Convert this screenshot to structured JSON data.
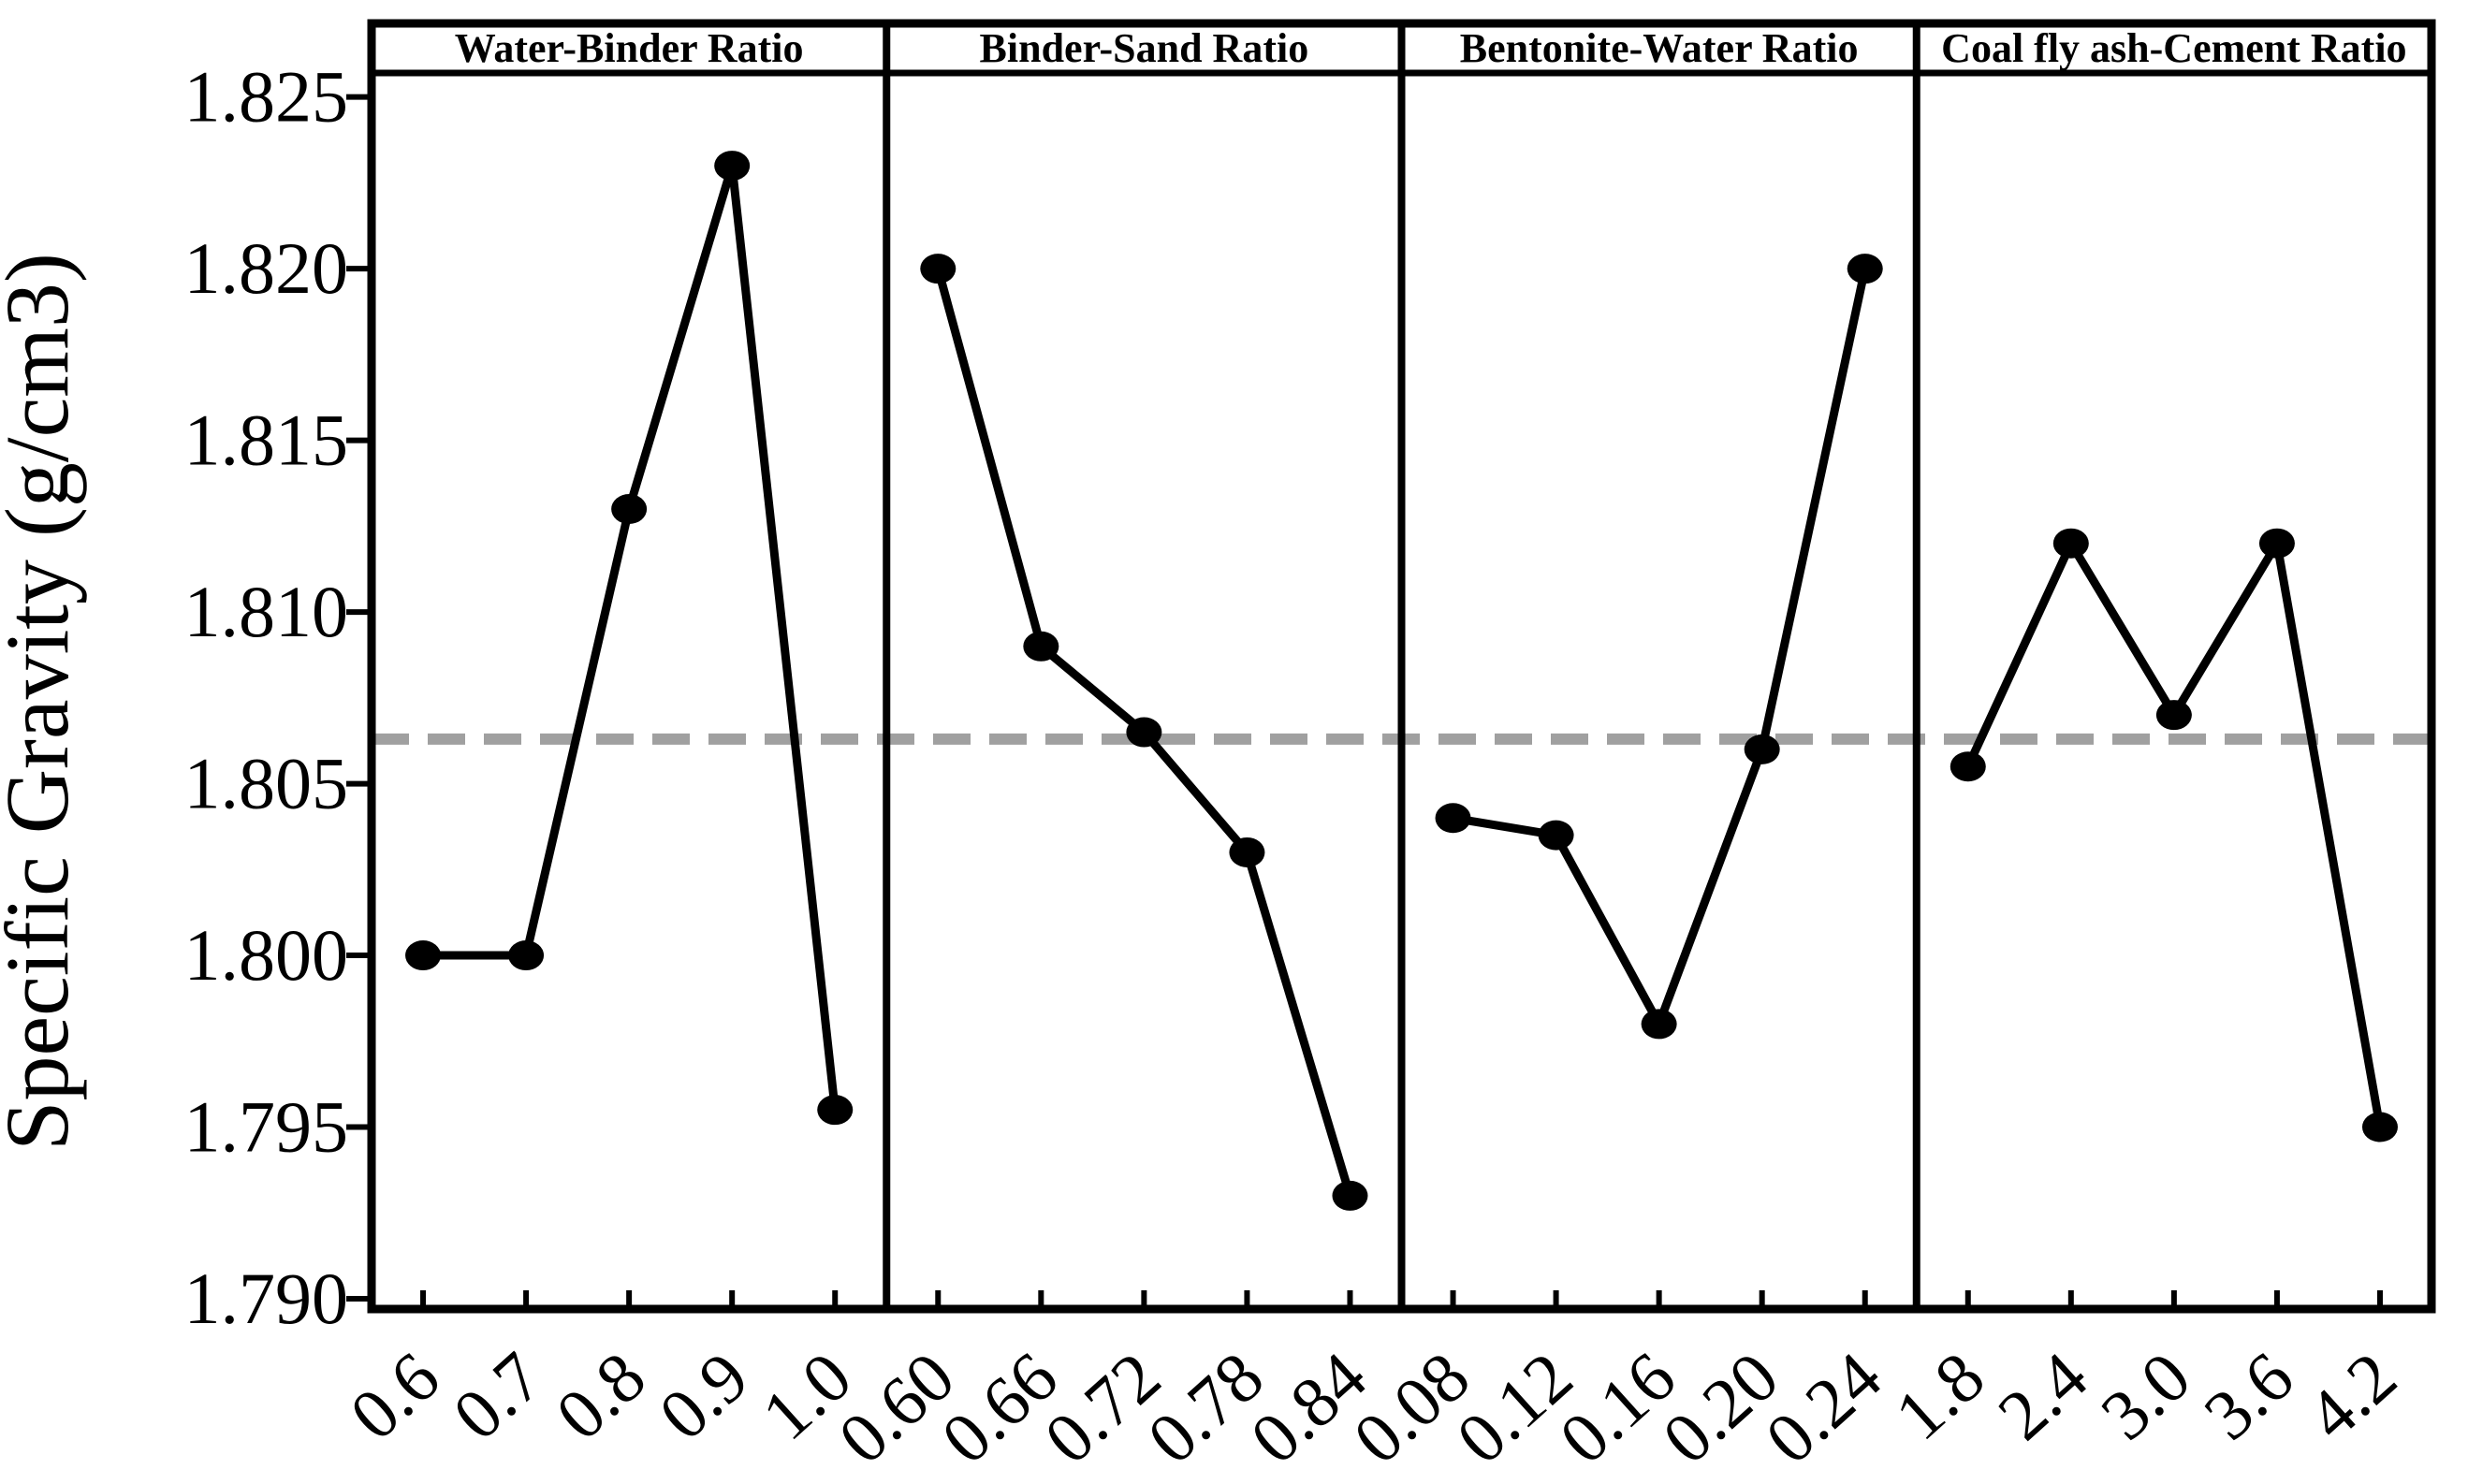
{
  "figure": {
    "background": "#ffffff",
    "frame_color": "#000000"
  },
  "chart_data": {
    "type": "line",
    "title": "",
    "ylabel": "Specific Gravity (g/cm3)",
    "xlabel": "",
    "ylim": [
      1.7897,
      1.8257
    ],
    "grid": false,
    "legend": false,
    "marker": "filled-circle",
    "series_color": "#000000",
    "y_ticks": [
      "1.790",
      "1.795",
      "1.800",
      "1.805",
      "1.810",
      "1.815",
      "1.820",
      "1.825"
    ],
    "mean_line": {
      "value": 1.8063,
      "color": "#a0a0a0",
      "style": "dashed"
    },
    "panels": [
      {
        "label": "Water-Binder Ratio",
        "categories": [
          "0.6",
          "0.7",
          "0.8",
          "0.9",
          "1.0"
        ],
        "values": [
          1.8,
          1.8,
          1.813,
          1.823,
          1.7955
        ]
      },
      {
        "label": "Binder-Sand Ratio",
        "categories": [
          "0.60",
          "0.66",
          "0.72",
          "0.78",
          "0.84"
        ],
        "values": [
          1.82,
          1.809,
          1.8065,
          1.803,
          1.793
        ]
      },
      {
        "label": "Bentonite-Water Ratio",
        "categories": [
          "0.08",
          "0.12",
          "0.16",
          "0.20",
          "0.24"
        ],
        "values": [
          1.804,
          1.8035,
          1.798,
          1.806,
          1.82
        ]
      },
      {
        "label": "Coal fly ash-Cement Ratio",
        "categories": [
          "1.8",
          "2.4",
          "3.0",
          "3.6",
          "4.2"
        ],
        "values": [
          1.8055,
          1.812,
          1.807,
          1.812,
          1.795
        ]
      }
    ]
  }
}
